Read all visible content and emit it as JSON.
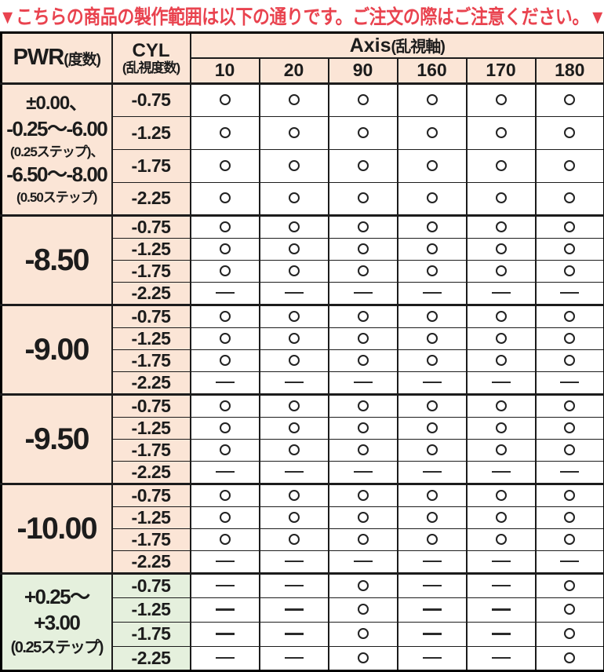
{
  "banner": {
    "text": "▼こちらの商品の製作範囲は以下の通りです。ご注文の際はご注意ください。▼"
  },
  "colors": {
    "peach": "#fbe5d6",
    "green": "#e5f0dd",
    "banner_red": "#e9434f"
  },
  "table": {
    "headers": {
      "pwr_main": "PWR",
      "pwr_sub": "(度数)",
      "cyl_main": "CYL",
      "cyl_sub": "(乱視度数)",
      "axis_main": "Axis",
      "axis_sub": "(乱視軸)",
      "axis_values": [
        "10",
        "20",
        "90",
        "160",
        "170",
        "180"
      ]
    },
    "symbols": {
      "available": "○",
      "unavailable": "—"
    },
    "groups": [
      {
        "bg": "peach",
        "pwr_lines": [
          {
            "text": "±0.00、",
            "size": "md"
          },
          {
            "text": "-0.25〜-6.00",
            "size": "lg"
          },
          {
            "text": "(0.25ステップ)、",
            "size": "sm"
          },
          {
            "text": "-6.50〜-8.00",
            "size": "lg"
          },
          {
            "text": "(0.50ステップ)",
            "size": "sm"
          }
        ],
        "rows": [
          {
            "cyl": "-0.75",
            "axis": [
              "○",
              "○",
              "○",
              "○",
              "○",
              "○"
            ]
          },
          {
            "cyl": "-1.25",
            "axis": [
              "○",
              "○",
              "○",
              "○",
              "○",
              "○"
            ]
          },
          {
            "cyl": "-1.75",
            "axis": [
              "○",
              "○",
              "○",
              "○",
              "○",
              "○"
            ]
          },
          {
            "cyl": "-2.25",
            "axis": [
              "○",
              "○",
              "○",
              "○",
              "○",
              "○"
            ]
          }
        ]
      },
      {
        "bg": "peach",
        "pwr_lines": [
          {
            "text": "-8.50",
            "size": "xl"
          }
        ],
        "rows": [
          {
            "cyl": "-0.75",
            "axis": [
              "○",
              "○",
              "○",
              "○",
              "○",
              "○"
            ]
          },
          {
            "cyl": "-1.25",
            "axis": [
              "○",
              "○",
              "○",
              "○",
              "○",
              "○"
            ]
          },
          {
            "cyl": "-1.75",
            "axis": [
              "○",
              "○",
              "○",
              "○",
              "○",
              "○"
            ]
          },
          {
            "cyl": "-2.25",
            "axis": [
              "—",
              "—",
              "—",
              "—",
              "—",
              "—"
            ]
          }
        ]
      },
      {
        "bg": "peach",
        "pwr_lines": [
          {
            "text": "-9.00",
            "size": "xl"
          }
        ],
        "rows": [
          {
            "cyl": "-0.75",
            "axis": [
              "○",
              "○",
              "○",
              "○",
              "○",
              "○"
            ]
          },
          {
            "cyl": "-1.25",
            "axis": [
              "○",
              "○",
              "○",
              "○",
              "○",
              "○"
            ]
          },
          {
            "cyl": "-1.75",
            "axis": [
              "○",
              "○",
              "○",
              "○",
              "○",
              "○"
            ]
          },
          {
            "cyl": "-2.25",
            "axis": [
              "—",
              "—",
              "—",
              "—",
              "—",
              "—"
            ]
          }
        ]
      },
      {
        "bg": "peach",
        "pwr_lines": [
          {
            "text": "-9.50",
            "size": "xl"
          }
        ],
        "rows": [
          {
            "cyl": "-0.75",
            "axis": [
              "○",
              "○",
              "○",
              "○",
              "○",
              "○"
            ]
          },
          {
            "cyl": "-1.25",
            "axis": [
              "○",
              "○",
              "○",
              "○",
              "○",
              "○"
            ]
          },
          {
            "cyl": "-1.75",
            "axis": [
              "○",
              "○",
              "○",
              "○",
              "○",
              "○"
            ]
          },
          {
            "cyl": "-2.25",
            "axis": [
              "—",
              "—",
              "—",
              "—",
              "—",
              "—"
            ]
          }
        ]
      },
      {
        "bg": "peach",
        "pwr_lines": [
          {
            "text": "-10.00",
            "size": "xl"
          }
        ],
        "rows": [
          {
            "cyl": "-0.75",
            "axis": [
              "○",
              "○",
              "○",
              "○",
              "○",
              "○"
            ]
          },
          {
            "cyl": "-1.25",
            "axis": [
              "○",
              "○",
              "○",
              "○",
              "○",
              "○"
            ]
          },
          {
            "cyl": "-1.75",
            "axis": [
              "○",
              "○",
              "○",
              "○",
              "○",
              "○"
            ]
          },
          {
            "cyl": "-2.25",
            "axis": [
              "—",
              "—",
              "—",
              "—",
              "—",
              "—"
            ]
          }
        ]
      },
      {
        "bg": "green",
        "pwr_lines": [
          {
            "text": "+0.25〜",
            "size": "lg"
          },
          {
            "text": "+3.00",
            "size": "lg"
          },
          {
            "text": "(0.25ステップ)",
            "size": "sm2"
          }
        ],
        "rows": [
          {
            "cyl": "-0.75",
            "axis": [
              "—",
              "—",
              "○",
              "—",
              "—",
              "○"
            ]
          },
          {
            "cyl": "-1.25",
            "axis": [
              "—",
              "—",
              "○",
              "—",
              "—",
              "○"
            ]
          },
          {
            "cyl": "-1.75",
            "axis": [
              "—",
              "—",
              "○",
              "—",
              "—",
              "○"
            ]
          },
          {
            "cyl": "-2.25",
            "axis": [
              "—",
              "—",
              "○",
              "—",
              "—",
              "○"
            ]
          }
        ]
      }
    ]
  }
}
